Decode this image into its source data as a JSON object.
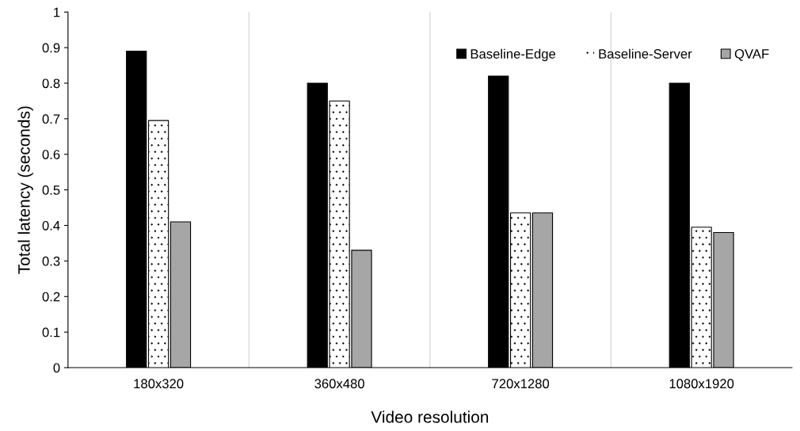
{
  "chart_data": {
    "type": "bar",
    "xlabel": "Video resolution",
    "ylabel": "Total latency (seconds)",
    "categories": [
      "180x320",
      "360x480",
      "720x1280",
      "1080x1920"
    ],
    "series": [
      {
        "name": "Baseline-Edge",
        "color": "#000000",
        "values": [
          0.89,
          0.8,
          0.82,
          0.8
        ]
      },
      {
        "name": "Baseline-Server",
        "color": "#ffffff",
        "values": [
          0.695,
          0.75,
          0.435,
          0.395
        ]
      },
      {
        "name": "QVAF",
        "color": "#a6a6a6",
        "values": [
          0.41,
          0.33,
          0.435,
          0.38
        ]
      }
    ],
    "ylim": [
      0,
      1
    ],
    "yticks": [
      0,
      {
        "value": 0.1,
        "label": "0.1"
      },
      {
        "value": 0.2,
        "label": "0.2"
      },
      {
        "value": 0.3,
        "label": "0.3"
      },
      {
        "value": 0.4,
        "label": "0.4"
      },
      {
        "value": 0.5,
        "label": "0.5"
      },
      {
        "value": 0.6,
        "label": "0.6"
      },
      {
        "value": 0.7,
        "label": "0.7"
      },
      {
        "value": 0.8,
        "label": "0.8"
      },
      {
        "value": 0.9,
        "label": "0.9"
      },
      1
    ],
    "grid": "x",
    "legend": "top right"
  }
}
